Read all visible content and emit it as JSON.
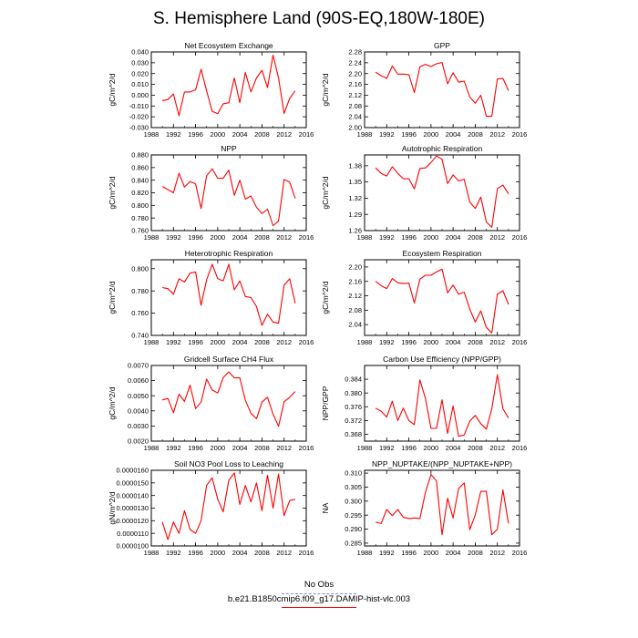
{
  "title": "S. Hemisphere Land (90S-EQ,180W-180E)",
  "legend": {
    "entries": [
      {
        "label": "No Obs",
        "color": "#8a8ae6",
        "style": "dashed"
      },
      {
        "label": "b.e21.B1850cmip6.f09_g17.DAMIP-hist-vlc.003",
        "color": "#ff0000",
        "style": "solid"
      }
    ]
  },
  "line_color": "#ff0000",
  "chart_data": [
    {
      "type": "line",
      "title": "Net Ecosystem Exchange",
      "ylabel": "gC/m^2/d",
      "xlim": [
        1988,
        2016
      ],
      "xticks": [
        "1988",
        "1992",
        "1996",
        "2000",
        "2004",
        "2008",
        "2012",
        "2016"
      ],
      "ylim": [
        -0.03,
        0.04
      ],
      "yticks": [
        "-0.030",
        "-0.020",
        "-0.010",
        "0.000",
        "0.010",
        "0.020",
        "0.030",
        "0.040"
      ],
      "x": [
        1990,
        1991,
        1992,
        1993,
        1994,
        1995,
        1996,
        1997,
        1998,
        1999,
        2000,
        2001,
        2002,
        2003,
        2004,
        2005,
        2006,
        2007,
        2008,
        2009,
        2010,
        2011,
        2012,
        2013,
        2014
      ],
      "y": [
        -0.005,
        -0.004,
        0.001,
        -0.019,
        0.003,
        0.003,
        0.005,
        0.024,
        0.004,
        -0.015,
        -0.017,
        -0.008,
        -0.007,
        0.016,
        -0.007,
        0.021,
        0.003,
        0.016,
        0.023,
        0.007,
        0.037,
        0.016,
        -0.017,
        -0.003,
        0.004
      ]
    },
    {
      "type": "line",
      "title": "GPP",
      "ylabel": "gC/m^2/d",
      "xlim": [
        1988,
        2016
      ],
      "xticks": [
        "1988",
        "1992",
        "1996",
        "2000",
        "2004",
        "2008",
        "2012",
        "2016"
      ],
      "ylim": [
        2.0,
        2.28
      ],
      "yticks": [
        "2.00",
        "2.04",
        "2.08",
        "2.12",
        "2.16",
        "2.20",
        "2.24",
        "2.28"
      ],
      "x": [
        1990,
        1991,
        1992,
        1993,
        1994,
        1995,
        1996,
        1997,
        1998,
        1999,
        2000,
        2001,
        2002,
        2003,
        2004,
        2005,
        2006,
        2007,
        2008,
        2009,
        2010,
        2011,
        2012,
        2013,
        2014
      ],
      "y": [
        2.205,
        2.192,
        2.182,
        2.228,
        2.198,
        2.198,
        2.196,
        2.13,
        2.225,
        2.234,
        2.226,
        2.236,
        2.241,
        2.162,
        2.203,
        2.168,
        2.172,
        2.113,
        2.09,
        2.12,
        2.042,
        2.042,
        2.18,
        2.182,
        2.137
      ]
    },
    {
      "type": "line",
      "title": "NPP",
      "ylabel": "gC/m^2/d",
      "xlim": [
        1988,
        2016
      ],
      "xticks": [
        "1988",
        "1992",
        "1996",
        "2000",
        "2004",
        "2008",
        "2012",
        "2016"
      ],
      "ylim": [
        0.76,
        0.88
      ],
      "yticks": [
        "0.760",
        "0.780",
        "0.800",
        "0.820",
        "0.840",
        "0.860",
        "0.880"
      ],
      "x": [
        1990,
        1991,
        1992,
        1993,
        1994,
        1995,
        1996,
        1997,
        1998,
        1999,
        2000,
        2001,
        2002,
        2003,
        2004,
        2005,
        2006,
        2007,
        2008,
        2009,
        2010,
        2011,
        2012,
        2013,
        2014
      ],
      "y": [
        0.83,
        0.825,
        0.82,
        0.851,
        0.829,
        0.838,
        0.834,
        0.795,
        0.847,
        0.858,
        0.843,
        0.843,
        0.856,
        0.816,
        0.84,
        0.81,
        0.815,
        0.797,
        0.787,
        0.794,
        0.768,
        0.775,
        0.841,
        0.837,
        0.811
      ]
    },
    {
      "type": "line",
      "title": "Autotrophic Respiration",
      "ylabel": "gC/m^2/d",
      "xlim": [
        1988,
        2016
      ],
      "xticks": [
        "1988",
        "1992",
        "1996",
        "2000",
        "2004",
        "2008",
        "2012",
        "2016"
      ],
      "ylim": [
        1.26,
        1.4
      ],
      "yticks": [
        "1.26",
        "1.29",
        "1.32",
        "1.35",
        "1.38"
      ],
      "x": [
        1990,
        1991,
        1992,
        1993,
        1994,
        1995,
        1996,
        1997,
        1998,
        1999,
        2000,
        2001,
        2002,
        2003,
        2004,
        2005,
        2006,
        2007,
        2008,
        2009,
        2010,
        2011,
        2012,
        2013,
        2014
      ],
      "y": [
        1.376,
        1.366,
        1.361,
        1.378,
        1.366,
        1.356,
        1.356,
        1.337,
        1.375,
        1.376,
        1.386,
        1.398,
        1.392,
        1.347,
        1.363,
        1.352,
        1.355,
        1.313,
        1.301,
        1.322,
        1.276,
        1.266,
        1.338,
        1.344,
        1.328
      ]
    },
    {
      "type": "line",
      "title": "Heterotrophic Respiration",
      "ylabel": "gC/m^2/d",
      "xlim": [
        1988,
        2016
      ],
      "xticks": [
        "1988",
        "1992",
        "1996",
        "2000",
        "2004",
        "2008",
        "2012",
        "2016"
      ],
      "ylim": [
        0.74,
        0.808
      ],
      "yticks": [
        "0.740",
        "0.760",
        "0.780",
        "0.800"
      ],
      "x": [
        1990,
        1991,
        1992,
        1993,
        1994,
        1995,
        1996,
        1997,
        1998,
        1999,
        2000,
        2001,
        2002,
        2003,
        2004,
        2005,
        2006,
        2007,
        2008,
        2009,
        2010,
        2011,
        2012,
        2013,
        2014
      ],
      "y": [
        0.783,
        0.782,
        0.777,
        0.791,
        0.788,
        0.796,
        0.797,
        0.767,
        0.79,
        0.804,
        0.791,
        0.789,
        0.804,
        0.781,
        0.789,
        0.775,
        0.774,
        0.766,
        0.749,
        0.759,
        0.752,
        0.751,
        0.785,
        0.791,
        0.769
      ]
    },
    {
      "type": "line",
      "title": "Ecosystem Respiration",
      "ylabel": "gC/m^2/d",
      "xlim": [
        1988,
        2016
      ],
      "xticks": [
        "1988",
        "1992",
        "1996",
        "2000",
        "2004",
        "2008",
        "2012",
        "2016"
      ],
      "ylim": [
        2.01,
        2.22
      ],
      "yticks": [
        "2.04",
        "2.08",
        "2.12",
        "2.16",
        "2.20"
      ],
      "x": [
        1990,
        1991,
        1992,
        1993,
        1994,
        1995,
        1996,
        1997,
        1998,
        1999,
        2000,
        2001,
        2002,
        2003,
        2004,
        2005,
        2006,
        2007,
        2008,
        2009,
        2010,
        2011,
        2012,
        2013,
        2014
      ],
      "y": [
        2.16,
        2.148,
        2.14,
        2.168,
        2.156,
        2.154,
        2.155,
        2.1,
        2.166,
        2.177,
        2.177,
        2.186,
        2.194,
        2.128,
        2.15,
        2.124,
        2.13,
        2.083,
        2.047,
        2.078,
        2.032,
        2.017,
        2.124,
        2.134,
        2.096
      ]
    },
    {
      "type": "line",
      "title": "Gridcell Surface CH4 Flux",
      "ylabel": "gC/m^2/d",
      "xlim": [
        1988,
        2016
      ],
      "xticks": [
        "1988",
        "1992",
        "1996",
        "2000",
        "2004",
        "2008",
        "2012",
        "2016"
      ],
      "ylim": [
        0.002,
        0.007
      ],
      "yticks": [
        "0.0020",
        "0.0030",
        "0.0040",
        "0.0050",
        "0.0060",
        "0.0070"
      ],
      "x": [
        1990,
        1991,
        1992,
        1993,
        1994,
        1995,
        1996,
        1997,
        1998,
        1999,
        2000,
        2001,
        2002,
        2003,
        2004,
        2005,
        2006,
        2007,
        2008,
        2009,
        2010,
        2011,
        2012,
        2013,
        2014
      ],
      "y": [
        0.00472,
        0.00482,
        0.00388,
        0.0051,
        0.00462,
        0.0057,
        0.00415,
        0.00458,
        0.0061,
        0.00538,
        0.00518,
        0.0062,
        0.00658,
        0.00618,
        0.00618,
        0.0047,
        0.00385,
        0.00348,
        0.00458,
        0.0049,
        0.00378,
        0.00298,
        0.0046,
        0.0049,
        0.00528
      ]
    },
    {
      "type": "line",
      "title": "Carbon Use Efficiency (NPP/GPP)",
      "ylabel": "NPP/GPP",
      "xlim": [
        1988,
        2016
      ],
      "xticks": [
        "1988",
        "1992",
        "1996",
        "2000",
        "2004",
        "2008",
        "2012",
        "2016"
      ],
      "ylim": [
        0.366,
        0.388
      ],
      "yticks": [
        "0.368",
        "0.372",
        "0.376",
        "0.380",
        "0.384"
      ],
      "x": [
        1990,
        1991,
        1992,
        1993,
        1994,
        1995,
        1996,
        1997,
        1998,
        1999,
        2000,
        2001,
        2002,
        2003,
        2004,
        2005,
        2006,
        2007,
        2008,
        2009,
        2010,
        2011,
        2012,
        2013,
        2014
      ],
      "y": [
        0.3756,
        0.3747,
        0.373,
        0.3776,
        0.372,
        0.3756,
        0.372,
        0.3708,
        0.3838,
        0.3784,
        0.3697,
        0.3697,
        0.378,
        0.3682,
        0.3762,
        0.3674,
        0.3678,
        0.3718,
        0.3735,
        0.3711,
        0.3695,
        0.3754,
        0.3853,
        0.3754,
        0.3727
      ]
    },
    {
      "type": "line",
      "title": "Soil NO3 Pool Loss to Leaching",
      "ylabel": "gN/m^2/d",
      "xlim": [
        1988,
        2016
      ],
      "xticks": [
        "1988",
        "1992",
        "1996",
        "2000",
        "2004",
        "2008",
        "2012",
        "2016"
      ],
      "ylim": [
        1e-05,
        1.6e-05
      ],
      "yticks": [
        "0.0000100",
        "0.0000110",
        "0.0000120",
        "0.0000130",
        "0.0000140",
        "0.0000150",
        "0.0000160"
      ],
      "x": [
        1990,
        1991,
        1992,
        1993,
        1994,
        1995,
        1996,
        1997,
        1998,
        1999,
        2000,
        2001,
        2002,
        2003,
        2004,
        2005,
        2006,
        2007,
        2008,
        2009,
        2010,
        2011,
        2012,
        2013,
        2014
      ],
      "y": [
        1.19e-05,
        1.05e-05,
        1.19e-05,
        1.1e-05,
        1.28e-05,
        1.13e-05,
        1.1e-05,
        1.2e-05,
        1.48e-05,
        1.54e-05,
        1.37e-05,
        1.27e-05,
        1.52e-05,
        1.58e-05,
        1.33e-05,
        1.48e-05,
        1.35e-05,
        1.5e-05,
        1.28e-05,
        1.56e-05,
        1.3e-05,
        1.57e-05,
        1.24e-05,
        1.36e-05,
        1.37e-05
      ]
    },
    {
      "type": "line",
      "title": "NPP_NUPTAKE/(NPP_NUPTAKE+NPP)",
      "ylabel": "NA",
      "xlim": [
        1988,
        2016
      ],
      "xticks": [
        "1988",
        "1992",
        "1996",
        "2000",
        "2004",
        "2008",
        "2012",
        "2016"
      ],
      "ylim": [
        0.284,
        0.311
      ],
      "yticks": [
        "0.285",
        "0.290",
        "0.295",
        "0.300",
        "0.305",
        "0.310"
      ],
      "x": [
        1990,
        1991,
        1992,
        1993,
        1994,
        1995,
        1996,
        1997,
        1998,
        1999,
        2000,
        2001,
        2002,
        2003,
        2004,
        2005,
        2006,
        2007,
        2008,
        2009,
        2010,
        2011,
        2012,
        2013,
        2014
      ],
      "y": [
        0.2925,
        0.292,
        0.297,
        0.2948,
        0.297,
        0.2942,
        0.2938,
        0.294,
        0.2938,
        0.3032,
        0.3095,
        0.3072,
        0.288,
        0.301,
        0.294,
        0.3045,
        0.3065,
        0.2898,
        0.295,
        0.3035,
        0.3035,
        0.288,
        0.29,
        0.304,
        0.292
      ]
    }
  ]
}
